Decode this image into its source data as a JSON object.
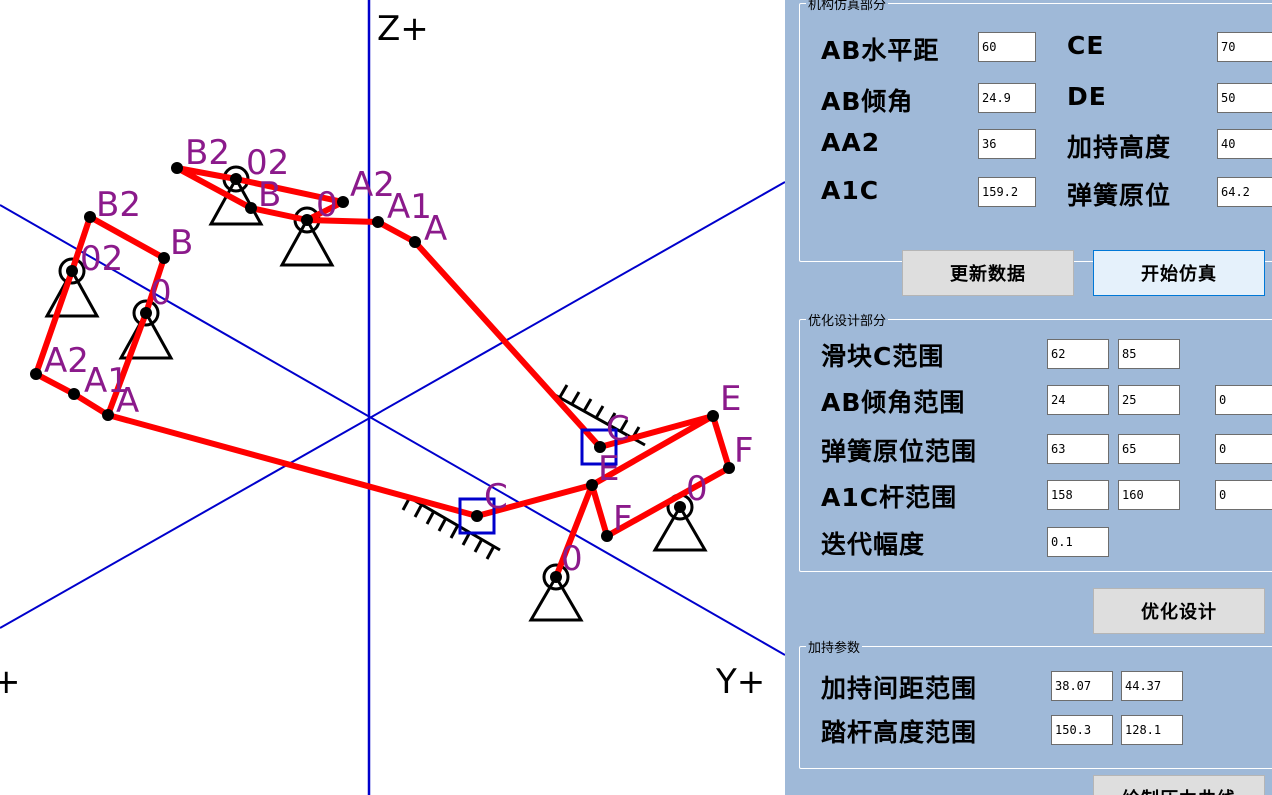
{
  "canvas": {
    "axes": {
      "z_label": "Z+",
      "y_label": "Y+",
      "x_label": "+"
    },
    "colors": {
      "link": "#ff0000",
      "axis": "#0000cc",
      "label": "#8b1a8b",
      "slider": "#0000cc"
    },
    "labels": {
      "B2_a": "B2",
      "O2_a": "02",
      "B_a": "B",
      "O_a": "0",
      "A2_a": "A2",
      "A1_a": "A1",
      "A_a": "A",
      "B2_b": "B2",
      "O2_b": "02",
      "B_b": "B",
      "O_b": "0",
      "A2_b": "A2",
      "A1_b": "A1",
      "A_b": "A",
      "C_a": "C",
      "E_a": "E",
      "C_b": "C",
      "E_b": "E",
      "F_b": "F",
      "O_c": "0",
      "F_c": "F",
      "O_d": "0"
    }
  },
  "panel": {
    "mech": {
      "legend": "机构仿真部分",
      "rows": [
        {
          "label": "AB水平距",
          "value": "60",
          "label2": "CE",
          "value2": "70"
        },
        {
          "label": "AB倾角",
          "value": "24.9",
          "label2": "DE",
          "value2": "50"
        },
        {
          "label": "AA2",
          "value": "36",
          "label2": "加持高度",
          "value2": "40"
        },
        {
          "label": "A1C",
          "value": "159.2",
          "label2": "弹簧原位",
          "value2": "64.2"
        }
      ]
    },
    "buttons": {
      "update": "更新数据",
      "start": "开始仿真",
      "optimize": "优化设计",
      "draw": "绘制压力曲线"
    },
    "opt": {
      "legend": "优化设计部分",
      "rows": [
        {
          "label": "滑块C范围",
          "min": "62",
          "max": "85",
          "extra": ""
        },
        {
          "label": "AB倾角范围",
          "min": "24",
          "max": "25",
          "extra": "0"
        },
        {
          "label": "弹簧原位范围",
          "min": "63",
          "max": "65",
          "extra": "0"
        },
        {
          "label": "A1C杆范围",
          "min": "158",
          "max": "160",
          "extra": "0"
        }
      ],
      "step_label": "迭代幅度",
      "step_value": "0.1"
    },
    "clamp": {
      "legend": "加持参数",
      "rows": [
        {
          "label": "加持间距范围",
          "min": "38.07",
          "max": "44.37"
        },
        {
          "label": "踏杆高度范围",
          "min": "150.3",
          "max": "128.1"
        }
      ]
    }
  }
}
